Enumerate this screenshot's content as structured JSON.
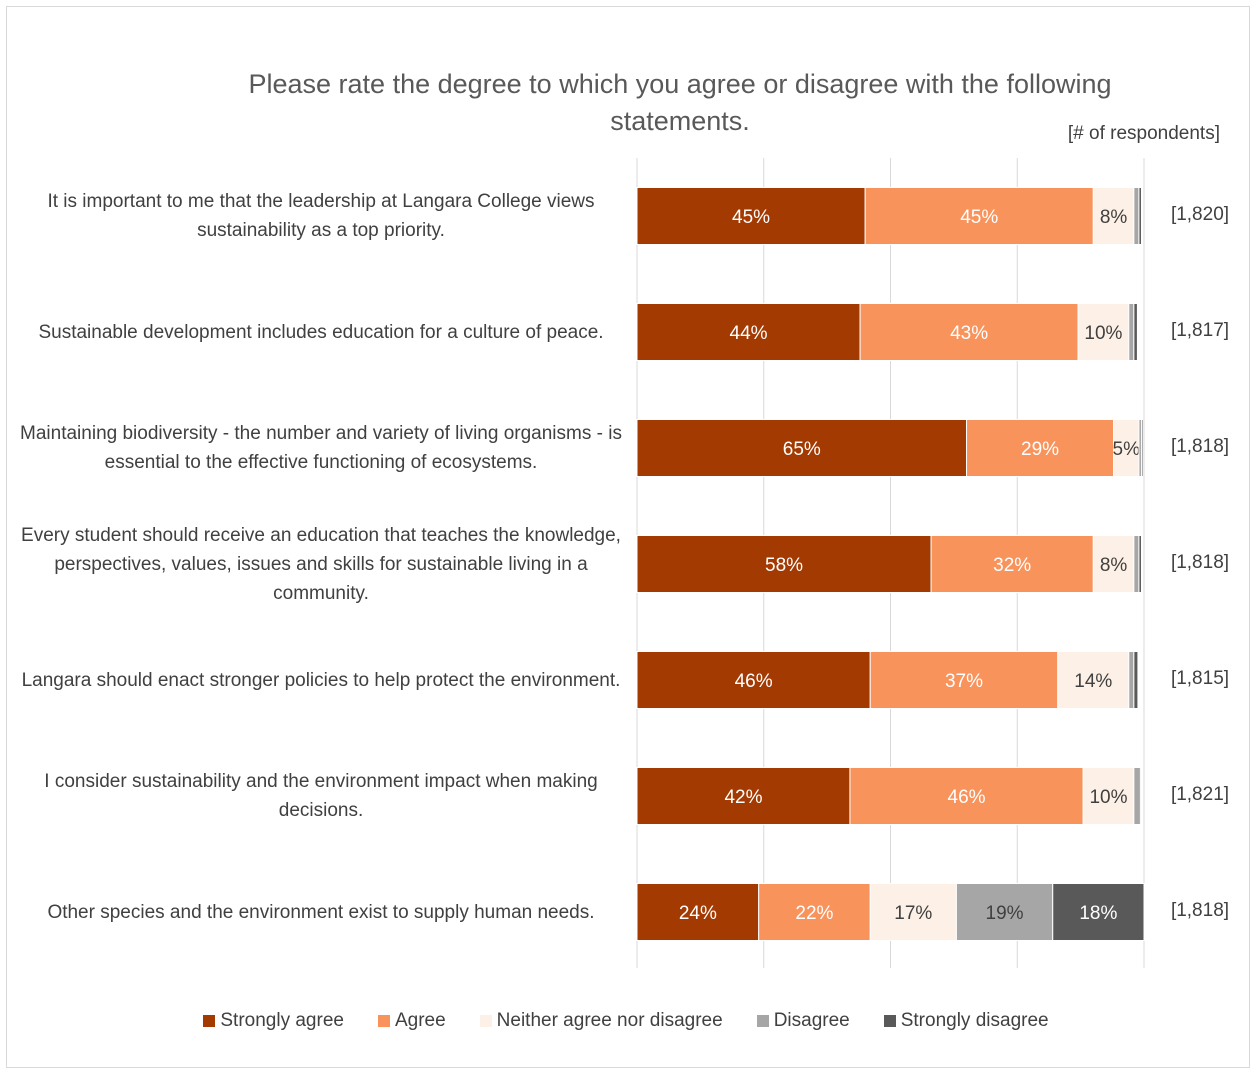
{
  "chart_data": {
    "type": "bar",
    "orientation": "horizontal",
    "stacked": "100%",
    "title": "Please rate the degree to which you agree or disagree with the following statements.",
    "count_header": "[# of respondents]",
    "categories": [
      "It is important to me that the leadership at Langara College views sustainability as a top priority.",
      "Sustainable development includes education for a culture of peace.",
      "Maintaining biodiversity - the number and variety of living organisms - is essential to the effective functioning of ecosystems.",
      "Every student should receive an education that teaches the knowledge, perspectives, values, issues and skills for sustainable living in a community.",
      "Langara should enact stronger policies to help protect the environment.",
      "I consider sustainability and the environment impact when making decisions.",
      "Other species and the environment exist to supply human needs."
    ],
    "respondents": [
      "[1,820]",
      "[1,817]",
      "[1,818]",
      "[1,818]",
      "[1,815]",
      "[1,821]",
      "[1,818]"
    ],
    "series": [
      {
        "name": "Strongly agree",
        "color": "#a33a02",
        "values": [
          45,
          44,
          65,
          58,
          46,
          42,
          24
        ],
        "labels": [
          "45%",
          "44%",
          "65%",
          "58%",
          "46%",
          "42%",
          "24%"
        ]
      },
      {
        "name": "Agree",
        "color": "#f9935c",
        "values": [
          45,
          43,
          29,
          32,
          37,
          46,
          22
        ],
        "labels": [
          "45%",
          "43%",
          "29%",
          "32%",
          "37%",
          "46%",
          "22%"
        ]
      },
      {
        "name": "Neither agree nor disagree",
        "color": "#fdf0e6",
        "values": [
          8,
          10,
          5,
          8,
          14,
          10,
          17
        ],
        "labels": [
          "8%",
          "10%",
          "5%",
          "8%",
          "14%",
          "10%",
          "17%"
        ]
      },
      {
        "name": "Disagree",
        "color": "#a6a6a6",
        "values": [
          1,
          1,
          0.5,
          1,
          1,
          1.3,
          19
        ],
        "labels": [
          "",
          "",
          "",
          "",
          "",
          "",
          "19%"
        ]
      },
      {
        "name": "Strongly disagree",
        "color": "#595959",
        "values": [
          0.5,
          0.7,
          0.3,
          0.5,
          0.8,
          0.2,
          18
        ],
        "labels": [
          "",
          "",
          "",
          "",
          "",
          "",
          "18%"
        ]
      }
    ],
    "xlim": [
      0,
      100
    ],
    "grid": true,
    "legend": "bottom"
  }
}
